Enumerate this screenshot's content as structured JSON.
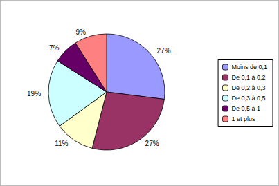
{
  "chart_data": {
    "type": "pie",
    "categories": [
      "Moins de 0,1",
      "De 0,1 à 0,2",
      "De 0,2 à 0,3",
      "De 0,3 à 0,5",
      "De 0,5 à 1",
      "1 et plus"
    ],
    "values": [
      27,
      27,
      11,
      19,
      7,
      9
    ],
    "value_labels": [
      "27%",
      "27%",
      "11%",
      "19%",
      "7%",
      "9%"
    ],
    "colors": [
      "#9999ff",
      "#993366",
      "#ffffcc",
      "#ccffff",
      "#660066",
      "#ff8080"
    ],
    "data_labels": true,
    "legend": "right"
  }
}
